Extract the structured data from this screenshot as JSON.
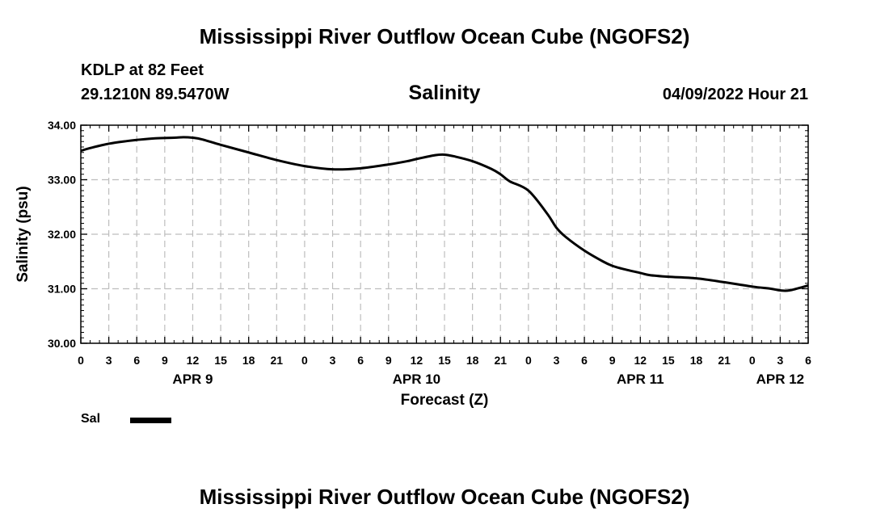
{
  "header": {
    "title": "Mississippi River Outflow Ocean Cube (NGOFS2)",
    "station": "KDLP at 82 Feet",
    "coords": "29.1210N  89.5470W",
    "chart_title": "Salinity",
    "datetime": "04/09/2022 Hour 21"
  },
  "footer": {
    "title": "Mississippi River Outflow Ocean Cube (NGOFS2)"
  },
  "legend": {
    "label": "Sal",
    "color": "#000000"
  },
  "chart_data": {
    "type": "line",
    "title": "Salinity",
    "xlabel": "Forecast (Z)",
    "ylabel": "Salinity (psu)",
    "ylim": [
      30,
      34
    ],
    "xlim": [
      0,
      78
    ],
    "grid": true,
    "yticks": [
      30,
      31,
      32,
      33,
      34
    ],
    "ytick_labels": [
      "30.00",
      "31.00",
      "32.00",
      "33.00",
      "34.00"
    ],
    "xticks": [
      0,
      3,
      6,
      9,
      12,
      15,
      18,
      21,
      24,
      27,
      30,
      33,
      36,
      39,
      42,
      45,
      48,
      51,
      54,
      57,
      60,
      63,
      66,
      69,
      72,
      75,
      78
    ],
    "xtick_labels": [
      "0",
      "3",
      "6",
      "9",
      "12",
      "15",
      "18",
      "21",
      "0",
      "3",
      "6",
      "9",
      "12",
      "15",
      "18",
      "21",
      "0",
      "3",
      "6",
      "9",
      "12",
      "15",
      "18",
      "21",
      "0",
      "3",
      "6"
    ],
    "day_labels": [
      {
        "x": 12,
        "label": "APR 9"
      },
      {
        "x": 36,
        "label": "APR 10"
      },
      {
        "x": 60,
        "label": "APR 11"
      },
      {
        "x": 75,
        "label": "APR 12"
      }
    ],
    "series": [
      {
        "name": "Sal",
        "x": [
          0,
          1,
          3,
          5,
          6,
          8,
          10,
          11,
          12,
          13,
          15,
          18,
          21,
          24,
          27,
          30,
          33,
          35,
          36,
          38,
          39,
          40,
          42,
          44,
          45,
          46,
          48,
          50,
          51,
          52,
          54,
          56,
          57,
          58,
          60,
          61,
          63,
          66,
          69,
          72,
          74,
          75,
          76,
          78
        ],
        "values": [
          33.53,
          33.58,
          33.66,
          33.71,
          33.73,
          33.76,
          33.77,
          33.78,
          33.77,
          33.74,
          33.64,
          33.5,
          33.36,
          33.25,
          33.19,
          33.21,
          33.28,
          33.34,
          33.38,
          33.45,
          33.46,
          33.43,
          33.34,
          33.2,
          33.1,
          32.97,
          32.8,
          32.38,
          32.12,
          31.95,
          31.7,
          31.5,
          31.42,
          31.37,
          31.29,
          31.25,
          31.22,
          31.19,
          31.12,
          31.04,
          31.0,
          30.97,
          30.97,
          31.06
        ]
      }
    ]
  }
}
